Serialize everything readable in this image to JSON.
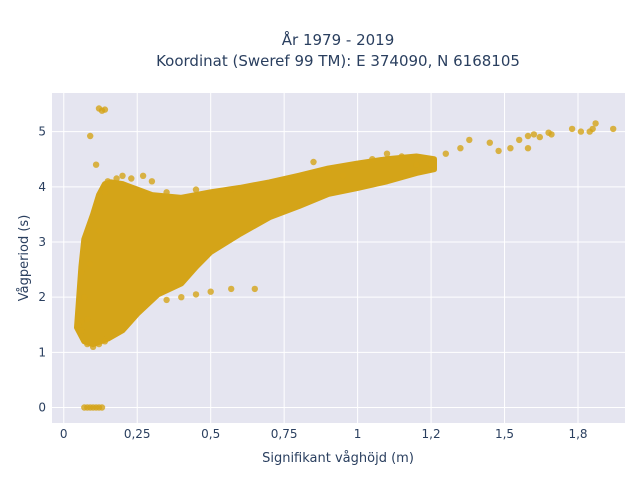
{
  "chart_data": {
    "type": "scatter",
    "title_lines": [
      "År 1979 - 2019",
      "Koordinat (Sweref 99 TM): E 374090, N 6168105"
    ],
    "xlabel": "Signifikant våghöjd (m)",
    "ylabel": "Vågperiod (s)",
    "xlim": [
      -0.04,
      1.91
    ],
    "ylim": [
      -0.28,
      5.7
    ],
    "x_ticks": [
      0,
      0.25,
      0.5,
      0.75,
      1,
      1.25,
      1.5,
      1.75
    ],
    "x_tick_labels": [
      "0",
      "0,25",
      "0,5",
      "0,75",
      "1",
      "1,2",
      "1,5",
      "1,8"
    ],
    "y_ticks": [
      0,
      1,
      2,
      3,
      4,
      5
    ],
    "y_tick_labels": [
      "0",
      "1",
      "2",
      "3",
      "4",
      "5"
    ],
    "grid": true,
    "colors": {
      "marker": "#D4A418",
      "plot_bg": "#E5E5F0",
      "grid": "#ffffff",
      "text": "#2a3f5f"
    },
    "series": [
      {
        "values": [
          [
            0.07,
            0.0
          ],
          [
            0.08,
            0.0
          ],
          [
            0.09,
            0.0
          ],
          [
            0.1,
            0.0
          ],
          [
            0.11,
            0.0
          ],
          [
            0.12,
            0.0
          ],
          [
            0.13,
            0.0
          ],
          [
            0.06,
            1.55
          ],
          [
            0.05,
            1.5
          ],
          [
            0.06,
            1.4
          ],
          [
            0.08,
            1.6
          ],
          [
            0.07,
            2.0
          ],
          [
            0.06,
            2.45
          ],
          [
            0.09,
            2.6
          ],
          [
            0.08,
            1.15
          ],
          [
            0.1,
            1.1
          ],
          [
            0.12,
            1.15
          ],
          [
            0.14,
            1.2
          ],
          [
            0.09,
            4.92
          ],
          [
            0.12,
            5.42
          ],
          [
            0.13,
            5.38
          ],
          [
            0.14,
            5.4
          ],
          [
            0.11,
            4.4
          ],
          [
            0.12,
            3.2
          ],
          [
            0.14,
            3.9
          ],
          [
            0.15,
            4.1
          ],
          [
            0.18,
            4.15
          ],
          [
            0.2,
            4.2
          ],
          [
            0.23,
            4.15
          ],
          [
            0.27,
            4.2
          ],
          [
            0.3,
            4.1
          ],
          [
            0.35,
            3.9
          ],
          [
            0.45,
            3.95
          ],
          [
            0.57,
            3.95
          ],
          [
            0.65,
            2.15
          ],
          [
            0.57,
            2.15
          ],
          [
            0.5,
            2.1
          ],
          [
            0.45,
            2.05
          ],
          [
            0.4,
            2.0
          ],
          [
            0.35,
            1.95
          ],
          [
            1.05,
            4.5
          ],
          [
            1.1,
            4.6
          ],
          [
            1.15,
            4.55
          ],
          [
            1.2,
            4.4
          ],
          [
            1.25,
            4.4
          ],
          [
            1.3,
            4.6
          ],
          [
            1.35,
            4.7
          ],
          [
            1.38,
            4.85
          ],
          [
            1.45,
            4.8
          ],
          [
            1.48,
            4.65
          ],
          [
            1.52,
            4.7
          ],
          [
            1.55,
            4.85
          ],
          [
            1.58,
            4.92
          ],
          [
            1.6,
            4.95
          ],
          [
            1.62,
            4.9
          ],
          [
            1.58,
            4.7
          ],
          [
            1.65,
            4.98
          ],
          [
            1.66,
            4.95
          ],
          [
            1.73,
            5.05
          ],
          [
            1.76,
            5.0
          ],
          [
            1.8,
            5.05
          ],
          [
            1.81,
            5.15
          ],
          [
            1.87,
            5.05
          ],
          [
            1.79,
            5.0
          ],
          [
            0.95,
            4.2
          ],
          [
            0.9,
            4.3
          ],
          [
            0.85,
            4.45
          ]
        ]
      }
    ]
  }
}
